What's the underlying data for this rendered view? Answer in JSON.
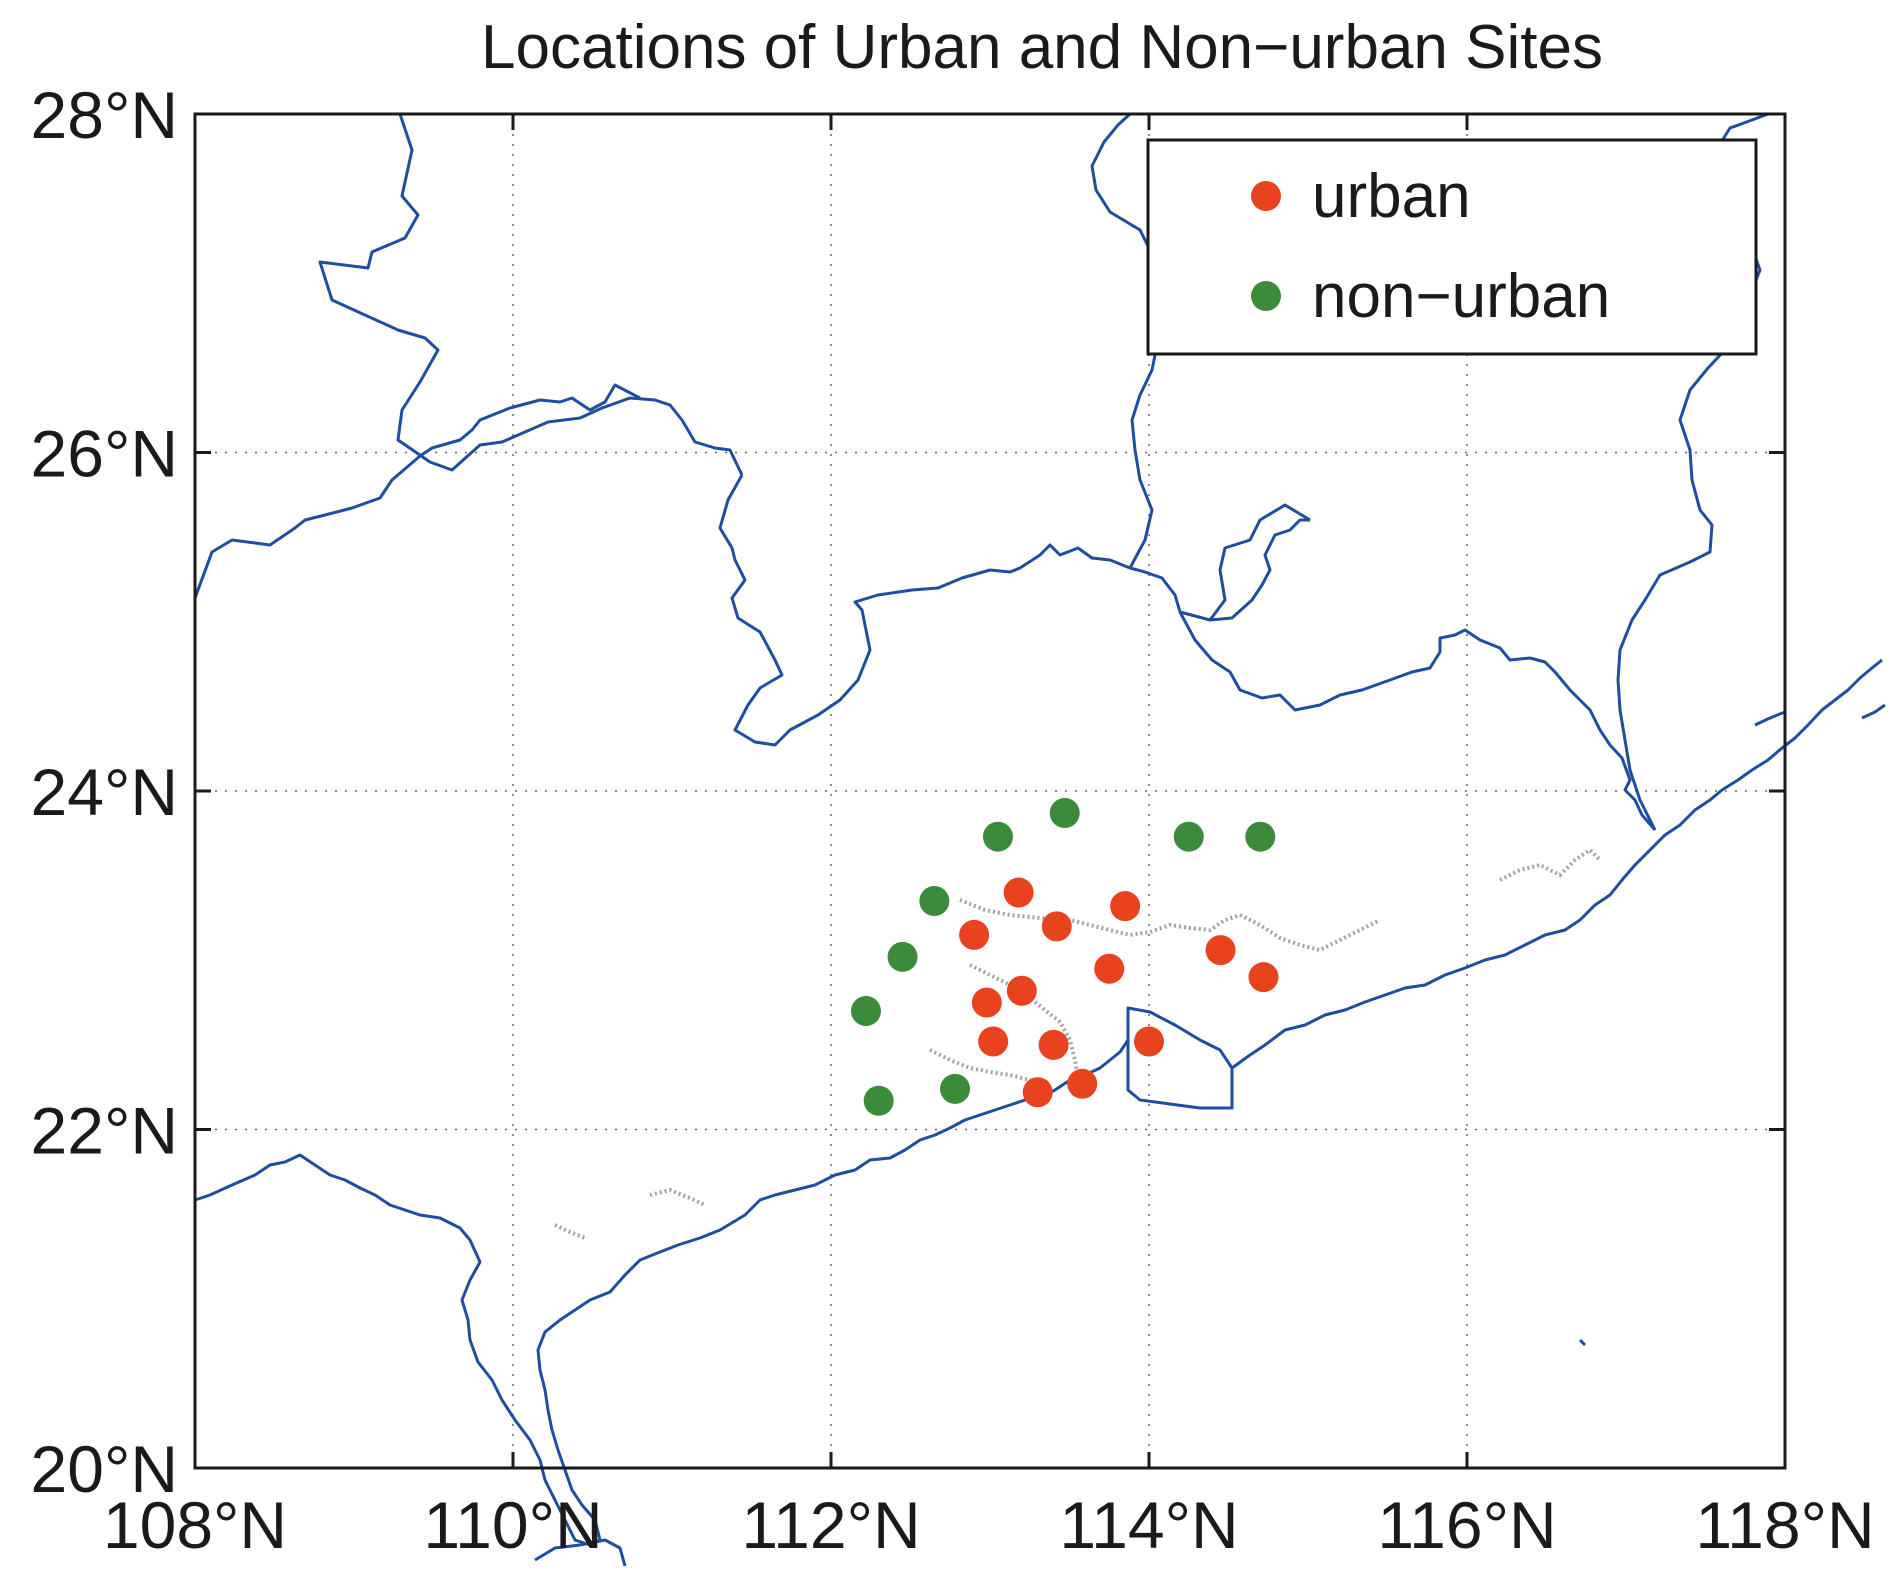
{
  "chart_data": {
    "type": "scatter",
    "title": "Locations of Urban and Non−urban Sites",
    "xlim": [
      108,
      118
    ],
    "ylim": [
      20,
      28
    ],
    "x_ticks": [
      108,
      110,
      112,
      114,
      116,
      118
    ],
    "y_ticks": [
      20,
      22,
      24,
      26,
      28
    ],
    "x_tick_labels": [
      "108°N",
      "110°N",
      "112°N",
      "114°N",
      "116°N",
      "118°N"
    ],
    "y_tick_labels": [
      "20°N",
      "22°N",
      "24°N",
      "26°N",
      "28°N"
    ],
    "grid": true,
    "legend_position": "top-right",
    "series": [
      {
        "name": "urban",
        "color": "#e8431f",
        "points": [
          [
            113.18,
            23.4
          ],
          [
            113.85,
            23.32
          ],
          [
            112.9,
            23.15
          ],
          [
            113.42,
            23.2
          ],
          [
            114.45,
            23.06
          ],
          [
            113.75,
            22.95
          ],
          [
            114.72,
            22.9
          ],
          [
            113.2,
            22.82
          ],
          [
            112.98,
            22.75
          ],
          [
            113.02,
            22.52
          ],
          [
            113.4,
            22.5
          ],
          [
            114.0,
            22.52
          ],
          [
            113.3,
            22.22
          ],
          [
            113.58,
            22.27
          ]
        ]
      },
      {
        "name": "non−urban",
        "color": "#3b8b3b",
        "points": [
          [
            113.47,
            23.87
          ],
          [
            113.05,
            23.73
          ],
          [
            114.25,
            23.73
          ],
          [
            114.7,
            23.73
          ],
          [
            112.65,
            23.35
          ],
          [
            112.45,
            23.02
          ],
          [
            112.22,
            22.7
          ],
          [
            112.78,
            22.24
          ],
          [
            112.3,
            22.17
          ]
        ]
      }
    ]
  },
  "map_features": {
    "boundary_color": "#1f4e9e",
    "river_color": "#a0a0a0"
  }
}
